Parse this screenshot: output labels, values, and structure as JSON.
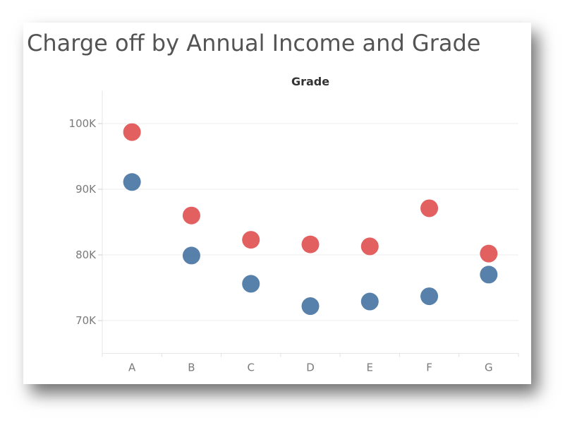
{
  "chart_data": {
    "type": "scatter",
    "title": "Charge off by Annual Income and Grade",
    "xlabel": "Grade",
    "ylabel": "",
    "categories": [
      "A",
      "B",
      "C",
      "D",
      "E",
      "F",
      "G"
    ],
    "ylim": [
      65000,
      105000
    ],
    "yticks": [
      70000,
      80000,
      90000,
      100000
    ],
    "ytick_labels": [
      "70K",
      "80K",
      "90K",
      "100K"
    ],
    "grid": true,
    "legend": "none",
    "series": [
      {
        "color": "#e15759",
        "values": [
          98700,
          86000,
          82300,
          81600,
          81300,
          87100,
          80200
        ]
      },
      {
        "color": "#4e79a7",
        "values": [
          91100,
          79900,
          75600,
          72200,
          72900,
          73700,
          77000
        ]
      }
    ]
  }
}
